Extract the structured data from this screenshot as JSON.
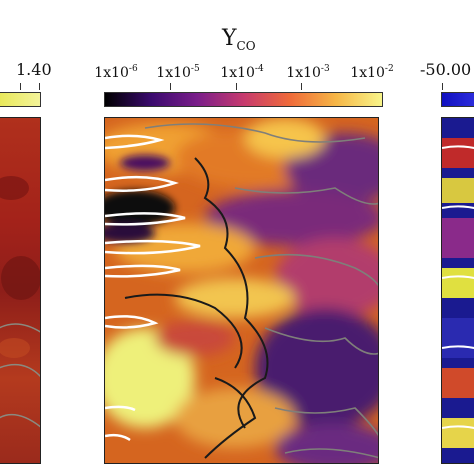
{
  "center_panel": {
    "title": "Y",
    "title_subscript": "CO",
    "colorbar_ticks": [
      {
        "base": "1x10",
        "exp": "-6"
      },
      {
        "base": "1x10",
        "exp": "-5"
      },
      {
        "base": "1x10",
        "exp": "-4"
      },
      {
        "base": "1x10",
        "exp": "-3"
      },
      {
        "base": "1x10",
        "exp": "-2"
      }
    ],
    "colormap": [
      "#000000",
      "#3a0a6e",
      "#7a1e8a",
      "#c63a6e",
      "#ef6a3a",
      "#f6b646",
      "#f8f58a"
    ]
  },
  "left_panel": {
    "colorbar_max_label": "1.40"
  },
  "right_panel": {
    "colorbar_min_label": "-50.00"
  }
}
